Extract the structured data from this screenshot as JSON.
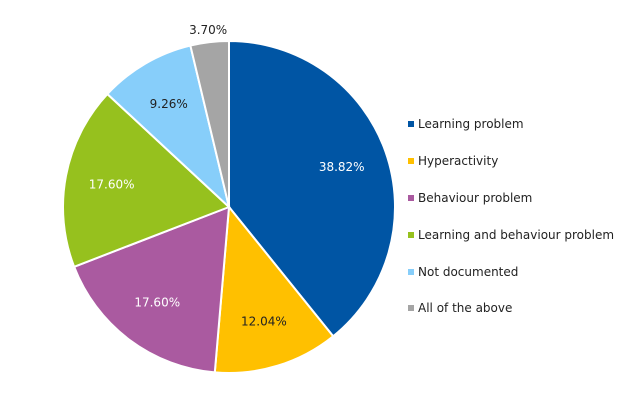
{
  "chart_data": {
    "type": "pie",
    "title": "",
    "categories": [
      "Learning problem",
      "Hyperactivity",
      "Behaviour problem",
      "Learning and behaviour problem",
      "Not documented",
      "All of the above"
    ],
    "values": [
      38.82,
      12.04,
      17.6,
      17.6,
      9.26,
      3.7
    ],
    "data_labels": [
      "38.82%",
      "12.04%",
      "17.60%",
      "17.60%",
      "9.26%",
      "3.70%"
    ],
    "colors": [
      "#0055A4",
      "#FFC000",
      "#AA5AA0",
      "#96C11E",
      "#87CEFA",
      "#A5A5A5"
    ],
    "label_colors": [
      "#ffffff",
      "#222222",
      "#ffffff",
      "#ffffff",
      "#222222",
      "#222222"
    ],
    "legend_position": "right",
    "start_angle": "12 o'clock, clockwise"
  }
}
